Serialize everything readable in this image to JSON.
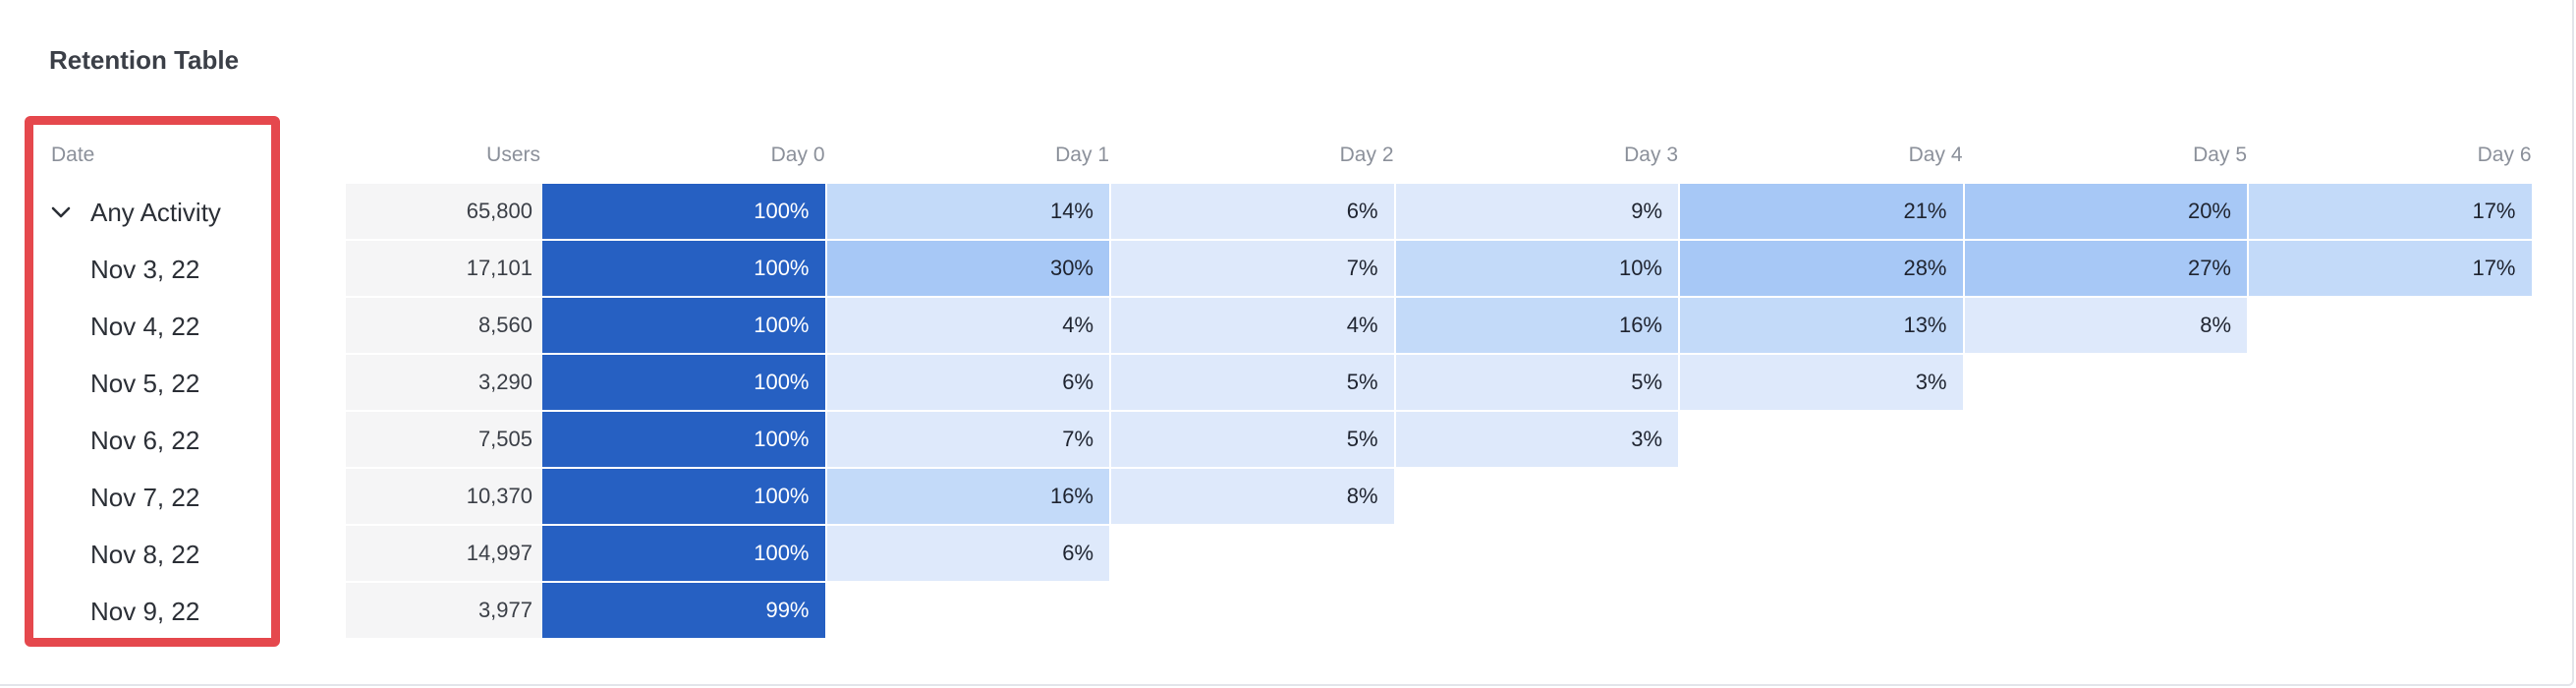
{
  "title": "Retention Table",
  "date_header": "Date",
  "dates": [
    {
      "label": "Any Activity",
      "expanded": true
    },
    {
      "label": "Nov 3, 22"
    },
    {
      "label": "Nov 4, 22"
    },
    {
      "label": "Nov 5, 22"
    },
    {
      "label": "Nov 6, 22"
    },
    {
      "label": "Nov 7, 22"
    },
    {
      "label": "Nov 8, 22"
    },
    {
      "label": "Nov 9, 22"
    }
  ],
  "columns": [
    "Users",
    "Day 0",
    "Day 1",
    "Day 2",
    "Day 3",
    "Day 4",
    "Day 5",
    "Day 6"
  ],
  "rows": [
    {
      "users": "65,800",
      "values": [
        "100%",
        "14%",
        "6%",
        "9%",
        "21%",
        "20%",
        "17%"
      ]
    },
    {
      "users": "17,101",
      "values": [
        "100%",
        "30%",
        "7%",
        "10%",
        "28%",
        "27%",
        "17%"
      ]
    },
    {
      "users": "8,560",
      "values": [
        "100%",
        "4%",
        "4%",
        "16%",
        "13%",
        "8%"
      ]
    },
    {
      "users": "3,290",
      "values": [
        "100%",
        "6%",
        "5%",
        "5%",
        "3%"
      ]
    },
    {
      "users": "7,505",
      "values": [
        "100%",
        "7%",
        "5%",
        "3%"
      ]
    },
    {
      "users": "10,370",
      "values": [
        "100%",
        "16%",
        "8%"
      ]
    },
    {
      "users": "14,997",
      "values": [
        "100%",
        "6%"
      ]
    },
    {
      "users": "3,977",
      "values": [
        "99%"
      ]
    }
  ],
  "colors": {
    "heat_full": "#2660c2",
    "heat_high": "#a7c8f6",
    "heat_mid": "#c3daf9",
    "heat_low": "#dee9fb",
    "users_bg": "#f5f5f6",
    "highlight_border": "#e5484d"
  },
  "icons": {
    "expand": "chevron-down-icon"
  }
}
